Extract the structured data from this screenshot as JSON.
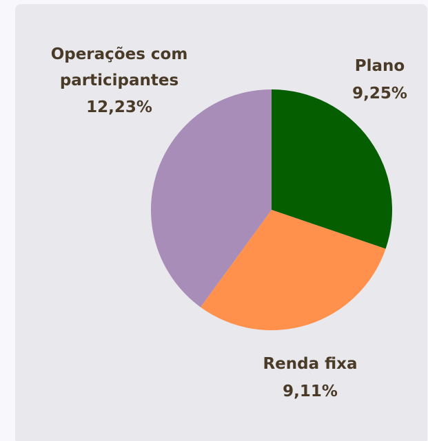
{
  "chart_data": {
    "type": "pie",
    "categories": [
      "Plano",
      "Renda fixa",
      "Operações com participantes"
    ],
    "values": [
      9.25,
      9.11,
      12.23
    ],
    "value_labels": [
      "9,25%",
      "9,11%",
      "12,23%"
    ],
    "colors": [
      "#055e00",
      "#ff914d",
      "#a98db9"
    ]
  }
}
